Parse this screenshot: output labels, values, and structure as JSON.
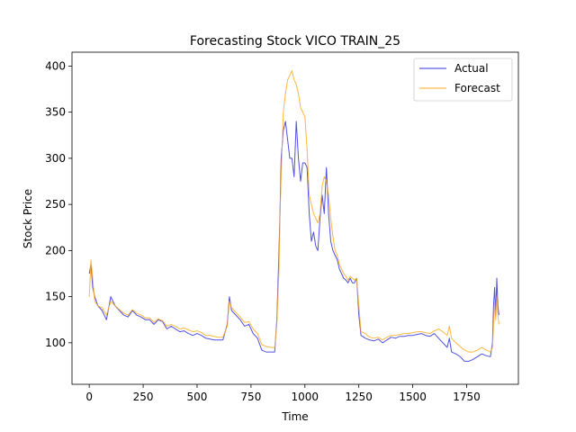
{
  "chart_data": {
    "type": "line",
    "title": "Forecasting Stock VICO TRAIN_25",
    "xlabel": "Time",
    "ylabel": "Stock Price",
    "xlim": [
      -80,
      1990
    ],
    "ylim": [
      55,
      415
    ],
    "xticks": [
      0,
      250,
      500,
      750,
      1000,
      1250,
      1500,
      1750
    ],
    "yticks": [
      100,
      150,
      200,
      250,
      300,
      350,
      400
    ],
    "grid": false,
    "legend_position": "top-right",
    "series": [
      {
        "name": "Actual",
        "color": "#3333dd",
        "x": [
          0,
          8,
          16,
          25,
          40,
          60,
          80,
          100,
          120,
          140,
          160,
          180,
          200,
          220,
          240,
          260,
          280,
          300,
          320,
          340,
          360,
          380,
          400,
          420,
          440,
          460,
          480,
          500,
          520,
          540,
          560,
          580,
          600,
          620,
          640,
          650,
          660,
          680,
          700,
          720,
          740,
          760,
          780,
          800,
          820,
          840,
          860,
          870,
          880,
          885,
          890,
          900,
          910,
          920,
          930,
          940,
          950,
          960,
          970,
          980,
          990,
          1000,
          1010,
          1020,
          1030,
          1040,
          1050,
          1060,
          1070,
          1080,
          1090,
          1100,
          1110,
          1120,
          1130,
          1140,
          1150,
          1160,
          1170,
          1180,
          1190,
          1200,
          1210,
          1220,
          1230,
          1240,
          1250,
          1260,
          1280,
          1300,
          1320,
          1340,
          1360,
          1380,
          1400,
          1420,
          1440,
          1460,
          1480,
          1500,
          1520,
          1540,
          1560,
          1580,
          1600,
          1620,
          1640,
          1660,
          1670,
          1680,
          1700,
          1720,
          1740,
          1760,
          1780,
          1800,
          1820,
          1840,
          1860,
          1870,
          1875,
          1880,
          1885,
          1890,
          1895,
          1900
        ],
        "values": [
          175,
          185,
          160,
          150,
          140,
          135,
          125,
          150,
          140,
          135,
          130,
          128,
          135,
          130,
          128,
          125,
          125,
          120,
          125,
          123,
          115,
          118,
          115,
          112,
          113,
          110,
          108,
          110,
          108,
          105,
          104,
          103,
          103,
          103,
          120,
          150,
          135,
          130,
          125,
          118,
          120,
          110,
          105,
          92,
          90,
          90,
          90,
          125,
          200,
          245,
          300,
          330,
          340,
          320,
          300,
          300,
          280,
          340,
          300,
          275,
          295,
          295,
          290,
          240,
          210,
          220,
          205,
          200,
          235,
          260,
          240,
          290,
          240,
          210,
          200,
          195,
          190,
          180,
          175,
          170,
          168,
          165,
          170,
          165,
          165,
          170,
          130,
          108,
          105,
          103,
          102,
          104,
          100,
          103,
          106,
          105,
          107,
          107,
          108,
          108,
          109,
          110,
          108,
          107,
          110,
          105,
          100,
          95,
          105,
          90,
          88,
          85,
          80,
          80,
          82,
          85,
          88,
          86,
          85,
          100,
          140,
          160,
          130,
          170,
          140,
          130
        ]
      },
      {
        "name": "Forecast",
        "color": "#ffaa22",
        "x": [
          0,
          8,
          16,
          25,
          40,
          60,
          80,
          100,
          120,
          140,
          160,
          180,
          200,
          220,
          240,
          260,
          280,
          300,
          320,
          340,
          360,
          380,
          400,
          420,
          440,
          460,
          480,
          500,
          520,
          540,
          560,
          580,
          600,
          620,
          640,
          650,
          660,
          680,
          700,
          720,
          740,
          760,
          780,
          800,
          820,
          840,
          860,
          870,
          880,
          885,
          890,
          900,
          910,
          920,
          930,
          940,
          950,
          960,
          970,
          980,
          990,
          1000,
          1010,
          1020,
          1030,
          1040,
          1050,
          1060,
          1070,
          1080,
          1090,
          1100,
          1110,
          1120,
          1130,
          1140,
          1150,
          1160,
          1170,
          1180,
          1190,
          1200,
          1210,
          1220,
          1230,
          1240,
          1250,
          1260,
          1280,
          1300,
          1320,
          1340,
          1360,
          1380,
          1400,
          1420,
          1440,
          1460,
          1480,
          1500,
          1520,
          1540,
          1560,
          1580,
          1600,
          1620,
          1640,
          1660,
          1670,
          1680,
          1700,
          1720,
          1740,
          1760,
          1780,
          1800,
          1820,
          1840,
          1860,
          1870,
          1875,
          1880,
          1885,
          1890,
          1895,
          1900
        ],
        "values": [
          150,
          190,
          170,
          145,
          140,
          138,
          130,
          145,
          140,
          136,
          132,
          130,
          136,
          132,
          130,
          127,
          127,
          122,
          126,
          124,
          118,
          120,
          118,
          115,
          116,
          114,
          112,
          113,
          111,
          108,
          108,
          107,
          106,
          106,
          118,
          145,
          138,
          133,
          128,
          122,
          123,
          115,
          110,
          98,
          96,
          95,
          95,
          120,
          180,
          240,
          280,
          350,
          370,
          385,
          390,
          395,
          385,
          380,
          370,
          355,
          350,
          345,
          310,
          260,
          250,
          240,
          235,
          230,
          240,
          270,
          280,
          275,
          260,
          235,
          215,
          200,
          195,
          185,
          180,
          175,
          172,
          168,
          172,
          170,
          168,
          170,
          140,
          112,
          110,
          106,
          105,
          106,
          103,
          106,
          108,
          108,
          109,
          110,
          110,
          111,
          112,
          112,
          111,
          110,
          113,
          115,
          112,
          108,
          118,
          105,
          100,
          96,
          92,
          90,
          90,
          92,
          95,
          92,
          90,
          95,
          120,
          145,
          125,
          150,
          130,
          120
        ]
      }
    ]
  }
}
